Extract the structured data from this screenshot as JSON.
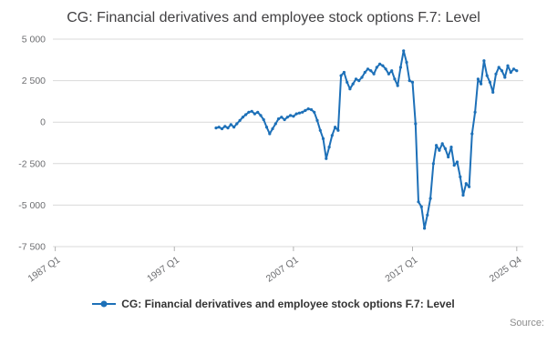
{
  "title": "CG: Financial derivatives and employee stock options F.7: Level",
  "legend": {
    "label": "CG: Financial derivatives and employee stock options F.7: Level"
  },
  "source_label": "Source:",
  "colors": {
    "line": "#1d70b8",
    "grid": "#d9d9d9",
    "axis": "#b3b3b3",
    "tick_text": "#6d6e71",
    "title_text": "#414042"
  },
  "chart_data": {
    "type": "line",
    "title": "CG: Financial derivatives and employee stock options F.7: Level",
    "xlabel": "",
    "ylabel": "",
    "grid": true,
    "legend_position": "bottom",
    "xlim": [
      1986.8,
      2026.3
    ],
    "ylim": [
      -7500,
      5000
    ],
    "xticks": {
      "values": [
        1987.0,
        1997.0,
        2007.0,
        2017.0,
        2025.75
      ],
      "labels": [
        "1987 Q1",
        "1997 Q1",
        "2007 Q1",
        "2017 Q1",
        "2025 Q4"
      ]
    },
    "yticks": {
      "values": [
        5000,
        2500,
        0,
        -2500,
        -5000,
        -7500
      ],
      "labels": [
        "5 000",
        "2 500",
        "0",
        "-2 500",
        "-5 000",
        "-7 500"
      ]
    },
    "series_name": "CG: Financial derivatives and employee stock options F.7: Level",
    "x_start": 2000.5,
    "x_step_years": 0.25,
    "x": [
      2000.5,
      2000.75,
      2001,
      2001.25,
      2001.5,
      2001.75,
      2002,
      2002.25,
      2002.5,
      2002.75,
      2003,
      2003.25,
      2003.5,
      2003.75,
      2004,
      2004.25,
      2004.5,
      2004.75,
      2005,
      2005.25,
      2005.5,
      2005.75,
      2006,
      2006.25,
      2006.5,
      2006.75,
      2007,
      2007.25,
      2007.5,
      2007.75,
      2008,
      2008.25,
      2008.5,
      2008.75,
      2009,
      2009.25,
      2009.5,
      2009.75,
      2010,
      2010.25,
      2010.5,
      2010.75,
      2011,
      2011.25,
      2011.5,
      2011.75,
      2012,
      2012.25,
      2012.5,
      2012.75,
      2013,
      2013.25,
      2013.5,
      2013.75,
      2014,
      2014.25,
      2014.5,
      2014.75,
      2015,
      2015.25,
      2015.5,
      2015.75,
      2016,
      2016.25,
      2016.5,
      2016.75,
      2017,
      2017.25,
      2017.5,
      2017.75,
      2018,
      2018.25,
      2018.5,
      2018.75,
      2019,
      2019.25,
      2019.5,
      2019.75,
      2020,
      2020.25,
      2020.5,
      2020.75,
      2021,
      2021.25,
      2021.5,
      2021.75,
      2022,
      2022.25,
      2022.5,
      2022.75,
      2023,
      2023.25,
      2023.5,
      2023.75,
      2024,
      2024.25,
      2024.5,
      2024.75,
      2025,
      2025.25,
      2025.5,
      2025.75
    ],
    "values": [
      -350,
      -300,
      -400,
      -250,
      -350,
      -150,
      -300,
      -100,
      100,
      300,
      450,
      600,
      650,
      500,
      600,
      400,
      150,
      -300,
      -700,
      -400,
      -100,
      200,
      300,
      150,
      300,
      400,
      350,
      500,
      550,
      600,
      700,
      800,
      750,
      600,
      100,
      -500,
      -1000,
      -2200,
      -1500,
      -800,
      -300,
      -500,
      2800,
      3000,
      2400,
      2000,
      2300,
      2600,
      2500,
      2700,
      3000,
      3200,
      3100,
      2900,
      3300,
      3500,
      3400,
      3200,
      2900,
      3100,
      2600,
      2200,
      3300,
      4300,
      3600,
      2500,
      2400,
      -100,
      -4800,
      -5100,
      -6400,
      -5600,
      -4600,
      -2500,
      -1400,
      -1700,
      -1300,
      -1600,
      -2100,
      -1500,
      -2600,
      -2400,
      -3300,
      -4400,
      -3700,
      -3900,
      -700,
      600,
      2600,
      2300,
      3700,
      2800,
      2400,
      1800,
      2900,
      3300,
      3100,
      2700,
      3400,
      3000,
      3200,
      3100
    ]
  }
}
